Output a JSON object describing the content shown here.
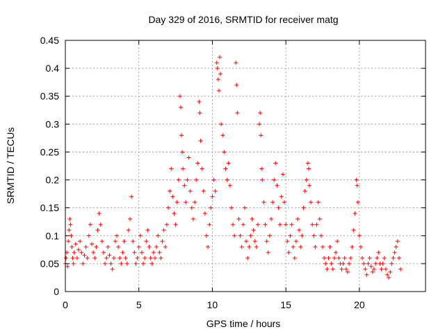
{
  "chart_data": {
    "type": "scatter",
    "title": "Day 329 of 2016, SRMTID for receiver matg",
    "xlabel": "GPS time / hours",
    "ylabel": "SRMTID / TECUs",
    "xlim": [
      0,
      24.5
    ],
    "ylim": [
      0,
      0.45
    ],
    "xticks": [
      0,
      5,
      10,
      15,
      20
    ],
    "xtick_labels": [
      "0",
      "5",
      "10",
      "15",
      "20"
    ],
    "yticks": [
      0,
      0.05,
      0.1,
      0.15,
      0.2,
      0.25,
      0.3,
      0.35,
      0.4,
      0.45
    ],
    "ytick_labels": [
      "0",
      "0.05",
      "0.1",
      "0.15",
      "0.2",
      "0.25",
      "0.3",
      "0.35",
      "0.4",
      "0.45"
    ],
    "grid": true,
    "marker": "+",
    "color": "#ff0000",
    "series": [
      {
        "name": "SRMTID",
        "points": [
          [
            0.0,
            0.05
          ],
          [
            0.05,
            0.06
          ],
          [
            0.1,
            0.07
          ],
          [
            0.15,
            0.045
          ],
          [
            0.2,
            0.09
          ],
          [
            0.25,
            0.11
          ],
          [
            0.3,
            0.13
          ],
          [
            0.35,
            0.12
          ],
          [
            0.4,
            0.1
          ],
          [
            0.45,
            0.08
          ],
          [
            0.5,
            0.06
          ],
          [
            0.55,
            0.05
          ],
          [
            0.6,
            0.07
          ],
          [
            0.7,
            0.085
          ],
          [
            0.8,
            0.06
          ],
          [
            0.9,
            0.075
          ],
          [
            1.0,
            0.09
          ],
          [
            1.1,
            0.07
          ],
          [
            1.2,
            0.05
          ],
          [
            1.3,
            0.065
          ],
          [
            1.4,
            0.08
          ],
          [
            1.5,
            0.06
          ],
          [
            1.6,
            0.1
          ],
          [
            1.7,
            0.12
          ],
          [
            1.8,
            0.085
          ],
          [
            1.9,
            0.07
          ],
          [
            2.0,
            0.06
          ],
          [
            2.1,
            0.08
          ],
          [
            2.2,
            0.11
          ],
          [
            2.3,
            0.14
          ],
          [
            2.4,
            0.12
          ],
          [
            2.5,
            0.09
          ],
          [
            2.6,
            0.07
          ],
          [
            2.7,
            0.05
          ],
          [
            2.8,
            0.06
          ],
          [
            2.9,
            0.08
          ],
          [
            3.0,
            0.065
          ],
          [
            3.1,
            0.05
          ],
          [
            3.2,
            0.04
          ],
          [
            3.3,
            0.06
          ],
          [
            3.4,
            0.09
          ],
          [
            3.5,
            0.1
          ],
          [
            3.6,
            0.08
          ],
          [
            3.7,
            0.06
          ],
          [
            3.8,
            0.05
          ],
          [
            3.9,
            0.07
          ],
          [
            4.0,
            0.09
          ],
          [
            4.1,
            0.06
          ],
          [
            4.2,
            0.05
          ],
          [
            4.3,
            0.11
          ],
          [
            4.4,
            0.13
          ],
          [
            4.5,
            0.17
          ],
          [
            4.6,
            0.09
          ],
          [
            4.7,
            0.07
          ],
          [
            4.8,
            0.05
          ],
          [
            4.9,
            0.06
          ],
          [
            5.0,
            0.08
          ],
          [
            5.1,
            0.1
          ],
          [
            5.2,
            0.07
          ],
          [
            5.3,
            0.05
          ],
          [
            5.4,
            0.06
          ],
          [
            5.5,
            0.09
          ],
          [
            5.6,
            0.11
          ],
          [
            5.7,
            0.08
          ],
          [
            5.8,
            0.06
          ],
          [
            5.9,
            0.05
          ],
          [
            6.0,
            0.07
          ],
          [
            6.1,
            0.06
          ],
          [
            6.2,
            0.08
          ],
          [
            6.3,
            0.1
          ],
          [
            6.4,
            0.07
          ],
          [
            6.5,
            0.06
          ],
          [
            6.6,
            0.09
          ],
          [
            6.7,
            0.11
          ],
          [
            6.8,
            0.08
          ],
          [
            6.9,
            0.12
          ],
          [
            7.0,
            0.15
          ],
          [
            7.1,
            0.18
          ],
          [
            7.2,
            0.22
          ],
          [
            7.3,
            0.17
          ],
          [
            7.4,
            0.14
          ],
          [
            7.5,
            0.12
          ],
          [
            7.6,
            0.16
          ],
          [
            7.7,
            0.2
          ],
          [
            7.8,
            0.35
          ],
          [
            7.85,
            0.33
          ],
          [
            7.9,
            0.28
          ],
          [
            7.95,
            0.25
          ],
          [
            8.0,
            0.22
          ],
          [
            8.1,
            0.19
          ],
          [
            8.2,
            0.16
          ],
          [
            8.3,
            0.2
          ],
          [
            8.4,
            0.24
          ],
          [
            8.5,
            0.18
          ],
          [
            8.6,
            0.15
          ],
          [
            8.7,
            0.13
          ],
          [
            8.8,
            0.16
          ],
          [
            8.9,
            0.2
          ],
          [
            9.0,
            0.23
          ],
          [
            9.1,
            0.34
          ],
          [
            9.15,
            0.32
          ],
          [
            9.2,
            0.27
          ],
          [
            9.3,
            0.22
          ],
          [
            9.4,
            0.18
          ],
          [
            9.5,
            0.14
          ],
          [
            9.6,
            0.1
          ],
          [
            9.7,
            0.08
          ],
          [
            9.8,
            0.12
          ],
          [
            9.9,
            0.15
          ],
          [
            10.0,
            0.17
          ],
          [
            10.1,
            0.2
          ],
          [
            10.2,
            0.18
          ],
          [
            10.3,
            0.41
          ],
          [
            10.35,
            0.4
          ],
          [
            10.4,
            0.38
          ],
          [
            10.45,
            0.36
          ],
          [
            10.5,
            0.42
          ],
          [
            10.55,
            0.39
          ],
          [
            10.6,
            0.3
          ],
          [
            10.7,
            0.28
          ],
          [
            10.8,
            0.25
          ],
          [
            10.9,
            0.22
          ],
          [
            11.0,
            0.2
          ],
          [
            11.1,
            0.23
          ],
          [
            11.2,
            0.19
          ],
          [
            11.3,
            0.15
          ],
          [
            11.4,
            0.12
          ],
          [
            11.5,
            0.1
          ],
          [
            11.6,
            0.41
          ],
          [
            11.65,
            0.37
          ],
          [
            11.7,
            0.32
          ],
          [
            11.8,
            0.13
          ],
          [
            11.9,
            0.1
          ],
          [
            12.0,
            0.08
          ],
          [
            12.1,
            0.12
          ],
          [
            12.2,
            0.15
          ],
          [
            12.3,
            0.09
          ],
          [
            12.4,
            0.06
          ],
          [
            12.5,
            0.08
          ],
          [
            12.6,
            0.1
          ],
          [
            12.7,
            0.13
          ],
          [
            12.8,
            0.11
          ],
          [
            12.9,
            0.09
          ],
          [
            13.0,
            0.08
          ],
          [
            13.1,
            0.12
          ],
          [
            13.2,
            0.3
          ],
          [
            13.25,
            0.32
          ],
          [
            13.3,
            0.28
          ],
          [
            13.35,
            0.22
          ],
          [
            13.4,
            0.2
          ],
          [
            13.5,
            0.16
          ],
          [
            13.6,
            0.12
          ],
          [
            13.7,
            0.09
          ],
          [
            13.8,
            0.07
          ],
          [
            13.9,
            0.1
          ],
          [
            14.0,
            0.13
          ],
          [
            14.1,
            0.16
          ],
          [
            14.2,
            0.2
          ],
          [
            14.3,
            0.23
          ],
          [
            14.4,
            0.19
          ],
          [
            14.5,
            0.15
          ],
          [
            14.6,
            0.12
          ],
          [
            14.7,
            0.17
          ],
          [
            14.8,
            0.21
          ],
          [
            14.9,
            0.16
          ],
          [
            15.0,
            0.12
          ],
          [
            15.1,
            0.09
          ],
          [
            15.2,
            0.07
          ],
          [
            15.3,
            0.1
          ],
          [
            15.4,
            0.12
          ],
          [
            15.5,
            0.08
          ],
          [
            15.6,
            0.06
          ],
          [
            15.7,
            0.09
          ],
          [
            15.8,
            0.13
          ],
          [
            15.9,
            0.11
          ],
          [
            16.0,
            0.08
          ],
          [
            16.1,
            0.1
          ],
          [
            16.2,
            0.15
          ],
          [
            16.3,
            0.18
          ],
          [
            16.4,
            0.2
          ],
          [
            16.5,
            0.23
          ],
          [
            16.55,
            0.22
          ],
          [
            16.6,
            0.19
          ],
          [
            16.7,
            0.16
          ],
          [
            16.8,
            0.12
          ],
          [
            16.9,
            0.1
          ],
          [
            17.0,
            0.08
          ],
          [
            17.1,
            0.12
          ],
          [
            17.2,
            0.16
          ],
          [
            17.3,
            0.13
          ],
          [
            17.4,
            0.1
          ],
          [
            17.5,
            0.08
          ],
          [
            17.6,
            0.06
          ],
          [
            17.7,
            0.05
          ],
          [
            17.8,
            0.04
          ],
          [
            17.9,
            0.06
          ],
          [
            18.0,
            0.08
          ],
          [
            18.1,
            0.05
          ],
          [
            18.2,
            0.04
          ],
          [
            18.3,
            0.06
          ],
          [
            18.4,
            0.07
          ],
          [
            18.5,
            0.09
          ],
          [
            18.6,
            0.06
          ],
          [
            18.7,
            0.05
          ],
          [
            18.8,
            0.04
          ],
          [
            18.9,
            0.05
          ],
          [
            19.0,
            0.06
          ],
          [
            19.1,
            0.04
          ],
          [
            19.2,
            0.035
          ],
          [
            19.3,
            0.05
          ],
          [
            19.4,
            0.06
          ],
          [
            19.5,
            0.08
          ],
          [
            19.6,
            0.11
          ],
          [
            19.7,
            0.14
          ],
          [
            19.8,
            0.2
          ],
          [
            19.85,
            0.19
          ],
          [
            19.9,
            0.16
          ],
          [
            20.0,
            0.1
          ],
          [
            20.1,
            0.08
          ],
          [
            20.2,
            0.06
          ],
          [
            20.3,
            0.05
          ],
          [
            20.4,
            0.04
          ],
          [
            20.5,
            0.03
          ],
          [
            20.6,
            0.05
          ],
          [
            20.7,
            0.06
          ],
          [
            20.8,
            0.045
          ],
          [
            20.9,
            0.035
          ],
          [
            21.0,
            0.04
          ],
          [
            21.1,
            0.05
          ],
          [
            21.2,
            0.06
          ],
          [
            21.3,
            0.07
          ],
          [
            21.4,
            0.05
          ],
          [
            21.5,
            0.04
          ],
          [
            21.6,
            0.05
          ],
          [
            21.7,
            0.06
          ],
          [
            21.8,
            0.04
          ],
          [
            21.9,
            0.03
          ],
          [
            22.0,
            0.025
          ],
          [
            22.1,
            0.035
          ],
          [
            22.2,
            0.05
          ],
          [
            22.3,
            0.06
          ],
          [
            22.4,
            0.07
          ],
          [
            22.5,
            0.08
          ],
          [
            22.6,
            0.09
          ],
          [
            22.7,
            0.06
          ],
          [
            22.8,
            0.04
          ]
        ]
      }
    ]
  }
}
